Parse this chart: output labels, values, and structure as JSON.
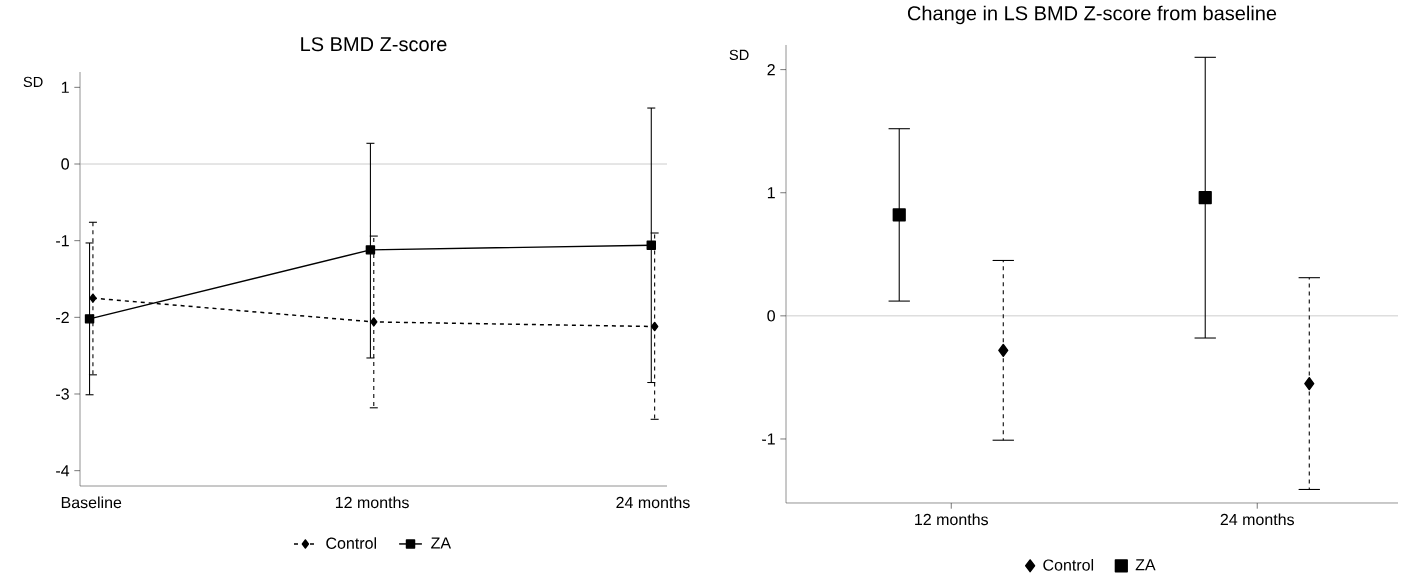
{
  "chart_data": [
    {
      "type": "line",
      "title": "LS BMD Z-score",
      "ylabel": "SD",
      "categories": [
        "Baseline",
        "12 months",
        "24 months"
      ],
      "ylim": [
        -4.2,
        1.2
      ],
      "yticks": [
        -4,
        -3,
        -2,
        -1,
        0,
        1
      ],
      "legend": "bottom",
      "ref_lines": [
        {
          "axis": "y",
          "value": 0,
          "color": "#a0a0a0"
        }
      ],
      "series": [
        {
          "name": "Control",
          "color": "#000000",
          "marker": "diamond",
          "line_style": "dashed",
          "values": [
            -1.75,
            -2.06,
            -2.12
          ],
          "errors": [
            [
              -2.75,
              -0.76
            ],
            [
              -3.18,
              -0.94
            ],
            [
              -3.33,
              -0.9
            ]
          ]
        },
        {
          "name": "ZA",
          "color": "#000000",
          "marker": "square",
          "line_style": "solid",
          "values": [
            -2.02,
            -1.12,
            -1.06
          ],
          "errors": [
            [
              -3.01,
              -1.03
            ],
            [
              -2.53,
              0.27
            ],
            [
              -2.85,
              0.73
            ]
          ]
        }
      ]
    },
    {
      "type": "scatter",
      "title": "Change in LS BMD Z-score from baseline",
      "ylabel": "SD",
      "categories": [
        "12 months",
        "24 months"
      ],
      "ylim": [
        -1.52,
        2.2
      ],
      "yticks": [
        -1,
        0,
        1,
        2
      ],
      "legend": "bottom",
      "ref_lines": [
        {
          "axis": "y",
          "value": 0,
          "color": "#a0a0a0"
        }
      ],
      "series": [
        {
          "name": "Control",
          "color": "#000000",
          "marker": "diamond",
          "line_style": "dashed",
          "values": [
            -0.28,
            -0.55
          ],
          "errors": [
            [
              -1.01,
              0.45
            ],
            [
              -1.41,
              0.31
            ]
          ]
        },
        {
          "name": "ZA",
          "color": "#000000",
          "marker": "square",
          "line_style": "solid",
          "values": [
            0.82,
            0.96
          ],
          "errors": [
            [
              0.12,
              1.52
            ],
            [
              -0.18,
              2.1
            ]
          ]
        }
      ]
    }
  ]
}
